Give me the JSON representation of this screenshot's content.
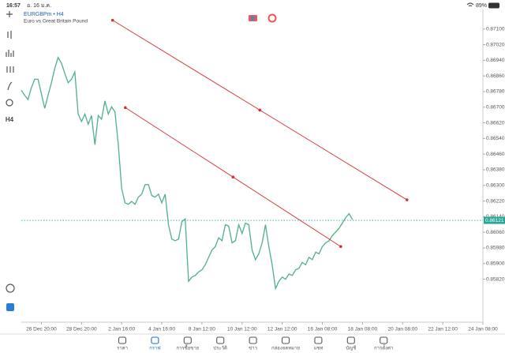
{
  "status_bar": {
    "time": "16:57",
    "date": "อ. 16 ม.ค.",
    "battery": "89%"
  },
  "toolbar": {
    "timeframe": "H4"
  },
  "chart_data": {
    "type": "line",
    "title": "EURGBPm • H4",
    "subtitle": "Euro vs Great Britain Pound",
    "grid": false,
    "series": [
      {
        "color": "#4fb08a",
        "values": [
          0.86787,
          0.86761,
          0.86739,
          0.86799,
          0.86843,
          0.86843,
          0.86769,
          0.86694,
          0.86761,
          0.86825,
          0.86899,
          0.86955,
          0.86925,
          0.86873,
          0.86825,
          0.86843,
          0.8688,
          0.86665,
          0.86627,
          0.86665,
          0.86613,
          0.86657,
          0.86508,
          0.86657,
          0.86639,
          0.86732,
          0.86665,
          0.86702,
          0.86676,
          0.86508,
          0.86285,
          0.86211,
          0.86203,
          0.86218,
          0.86203,
          0.8624,
          0.86255,
          0.86304,
          0.86304,
          0.86248,
          0.8624,
          0.86255,
          0.86211,
          0.86255,
          0.86099,
          0.86025,
          0.86017,
          0.86025,
          0.86114,
          0.86129,
          0.85809,
          0.85831,
          0.85839,
          0.85857,
          0.85868,
          0.85894,
          0.85932,
          0.85969,
          0.85987,
          0.86032,
          0.86017,
          0.86099,
          0.86092,
          0.86006,
          0.86017,
          0.86099,
          0.86054,
          0.86107,
          0.86099,
          0.85969,
          0.8592,
          0.8595,
          0.86006,
          0.86099,
          0.85987,
          0.85894,
          0.85772,
          0.85809,
          0.85831,
          0.8582,
          0.85846,
          0.85839,
          0.85868,
          0.85876,
          0.85906,
          0.85894,
          0.85932,
          0.8592,
          0.85958,
          0.8595,
          0.85987,
          0.86006,
          0.86017,
          0.86043,
          0.86062,
          0.86081,
          0.86107,
          0.86136,
          0.86155,
          0.86125
        ]
      }
    ],
    "xlim": [
      0,
      138
    ],
    "xticks": [
      {
        "value": 6,
        "label": "26 Dec 20:00"
      },
      {
        "value": 18,
        "label": "28 Dec 20:00"
      },
      {
        "value": 30,
        "label": "2 Jan 16:00"
      },
      {
        "value": 42,
        "label": "4 Jan 16:00"
      },
      {
        "value": 54,
        "label": "8 Jan 12:00"
      },
      {
        "value": 66,
        "label": "10 Jan 12:00"
      },
      {
        "value": 78,
        "label": "12 Jan 12:00"
      },
      {
        "value": 90,
        "label": "16 Jan 08:00"
      },
      {
        "value": 102,
        "label": "18 Jan 08:00"
      },
      {
        "value": 114,
        "label": "20 Jan 08:00"
      },
      {
        "value": 126,
        "label": "22 Jan 12:00"
      },
      {
        "value": 138,
        "label": "24 Jan 08:00"
      }
    ],
    "ylim": [
      0.856,
      0.872
    ],
    "yticks": [
      {
        "value": 0.871,
        "label": "0.87100"
      },
      {
        "value": 0.8702,
        "label": "0.87020"
      },
      {
        "value": 0.8694,
        "label": "0.86940"
      },
      {
        "value": 0.8686,
        "label": "0.86860"
      },
      {
        "value": 0.8678,
        "label": "0.86780"
      },
      {
        "value": 0.867,
        "label": "0.86700"
      },
      {
        "value": 0.8662,
        "label": "0.86620"
      },
      {
        "value": 0.8654,
        "label": "0.86540"
      },
      {
        "value": 0.8646,
        "label": "0.86460"
      },
      {
        "value": 0.8638,
        "label": "0.86380"
      },
      {
        "value": 0.863,
        "label": "0.86300"
      },
      {
        "value": 0.8622,
        "label": "0.86220"
      },
      {
        "value": 0.8614,
        "label": "0.86140"
      },
      {
        "value": 0.8606,
        "label": "0.86060"
      },
      {
        "value": 0.8598,
        "label": "0.85980"
      },
      {
        "value": 0.859,
        "label": "0.85900"
      },
      {
        "value": 0.8582,
        "label": "0.85820"
      }
    ],
    "price_line": {
      "value": 0.86121,
      "label": "0.86121",
      "color": "#26a69a"
    },
    "trendlines": [
      {
        "color": "#d62f2f",
        "x": [
          27.3,
          115.3
        ],
        "y": [
          0.87145,
          0.86226
        ]
      },
      {
        "color": "#d62f2f",
        "x": [
          31.1,
          95.5
        ],
        "y": [
          0.86698,
          0.85987
        ]
      }
    ]
  },
  "nav": {
    "items": [
      "ราคา",
      "กราฟ",
      "การซื้อขาย",
      "ประวัติ",
      "ข่าว",
      "กล่องจดหมาย",
      "แชท",
      "บัญชี",
      "การตั้งค่า"
    ],
    "active": 1
  }
}
